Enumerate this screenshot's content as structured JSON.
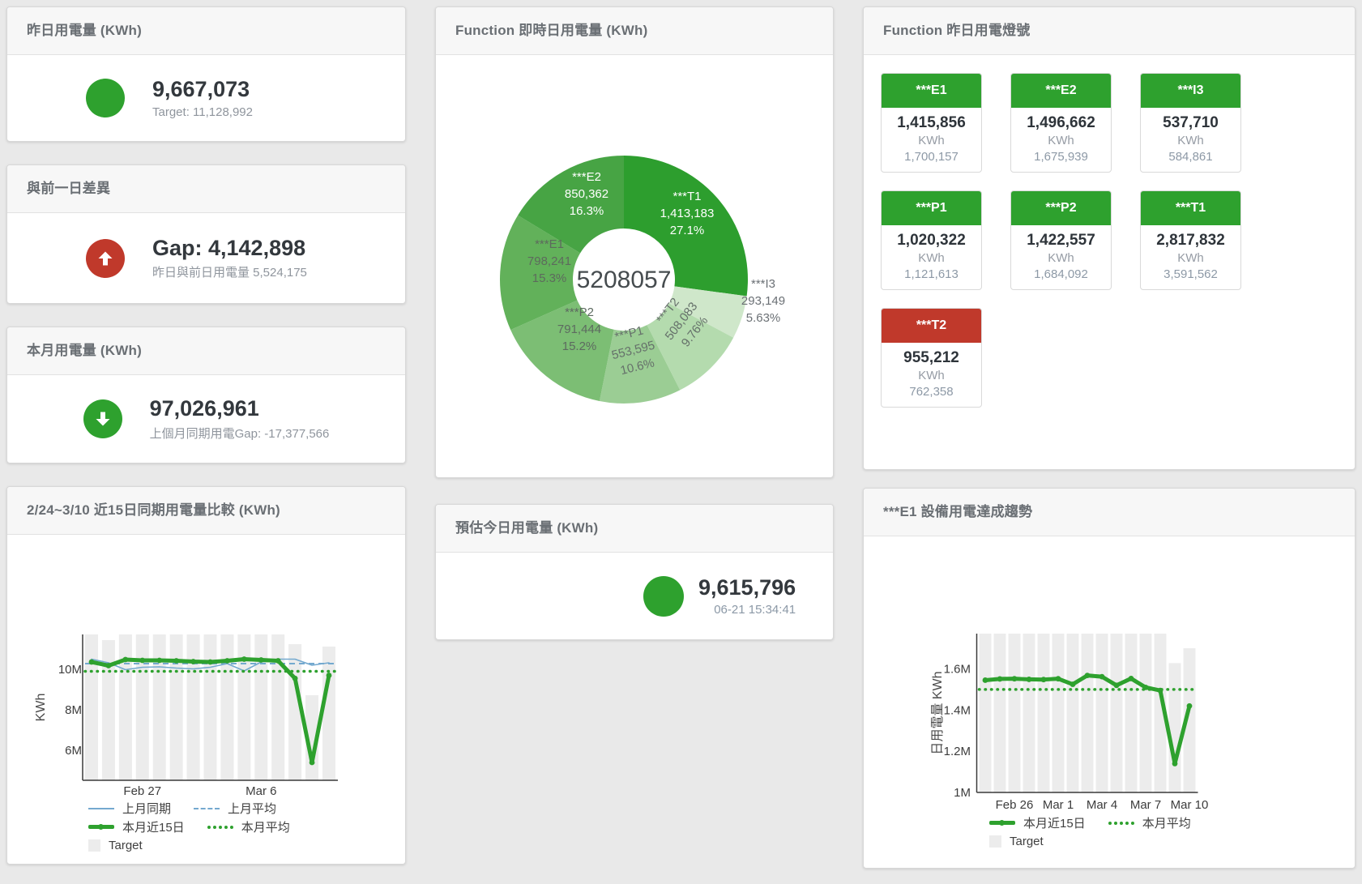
{
  "colors": {
    "green": "#2ea12e",
    "red": "#c0392b",
    "blue": "#74a9cf",
    "bar_gray": "#ececec",
    "title_gray": "#6a6f74",
    "value_dark": "#33383d",
    "sub_gray": "#8f959d"
  },
  "cards": {
    "yesterday": {
      "title": "昨日用電量 (KWh)",
      "value": "9,667,073",
      "subtitle": "Target: 11,128,992"
    },
    "diff": {
      "title": "與前一日差異",
      "value": "Gap: 4,142,898",
      "subtitle": "昨日與前日用電量 5,524,175"
    },
    "month": {
      "title": "本月用電量 (KWh)",
      "value": "97,026,961",
      "subtitle": "上個月同期用電Gap: -17,377,566"
    },
    "estimate": {
      "title": "預估今日用電量 (KWh)",
      "value": "9,615,796",
      "subtitle": "06-21 15:34:41"
    }
  },
  "lights": {
    "title": "Function 昨日用電燈號",
    "unit": "KWh",
    "tiles": [
      {
        "name": "***E1",
        "value": "1,415,856",
        "target": "1,700,157",
        "status": "green"
      },
      {
        "name": "***E2",
        "value": "1,496,662",
        "target": "1,675,939",
        "status": "green"
      },
      {
        "name": "***I3",
        "value": "537,710",
        "target": "584,861",
        "status": "green"
      },
      {
        "name": "***P1",
        "value": "1,020,322",
        "target": "1,121,613",
        "status": "green"
      },
      {
        "name": "***P2",
        "value": "1,422,557",
        "target": "1,684,092",
        "status": "green"
      },
      {
        "name": "***T1",
        "value": "2,817,832",
        "target": "3,591,562",
        "status": "green"
      },
      {
        "name": "***T2",
        "value": "955,212",
        "target": "762,358",
        "status": "red"
      }
    ]
  },
  "chart_data": [
    {
      "id": "donut",
      "type": "pie",
      "title": "Function 即時日用電量 (KWh)",
      "center_total": "5208057",
      "legend_position": "none",
      "slices": [
        {
          "label": "***T1",
          "value": 1413183,
          "display": "1,413,183",
          "pct": "27.1%",
          "color": "#2d9e2e",
          "text_color": "#ffffff",
          "label_pos": [
            310,
            193
          ]
        },
        {
          "label": "***I3",
          "value": 293149,
          "display": "293,149",
          "pct": "5.63%",
          "color": "#cfe7ca",
          "text_color": "#6b7075",
          "label_pos": [
            404,
            301
          ]
        },
        {
          "label": "***T2",
          "value": 508083,
          "display": "508,083",
          "pct": "9.76%",
          "color": "#b4dbae",
          "text_color": "#65706a",
          "label_pos": [
            301,
            327
          ],
          "label_rotate": -52
        },
        {
          "label": "***P1",
          "value": 553595,
          "display": "553,595",
          "pct": "10.6%",
          "color": "#9bcd94",
          "text_color": "#65706a",
          "label_pos": [
            243,
            362
          ],
          "label_rotate": -14
        },
        {
          "label": "***P2",
          "value": 791444,
          "display": "791,444",
          "pct": "15.2%",
          "color": "#7cbe74",
          "text_color": "#5d6a60",
          "label_pos": [
            177,
            336
          ]
        },
        {
          "label": "***E1",
          "value": 798241,
          "display": "798,241",
          "pct": "15.3%",
          "color": "#62b15a",
          "text_color": "#5d6a5d",
          "label_pos": [
            140,
            252
          ]
        },
        {
          "label": "***E2",
          "value": 850362,
          "display": "850,362",
          "pct": "16.3%",
          "color": "#47a444",
          "text_color": "#ffffff",
          "label_pos": [
            186,
            169
          ]
        }
      ]
    },
    {
      "id": "compare",
      "type": "line",
      "title": "2/24~3/10 近15日同期用電量比較 (KWh)",
      "xlabel": "",
      "ylabel": "KWh",
      "ylim": [
        4.52,
        11.72
      ],
      "grid": false,
      "yticks": [
        {
          "v": 6,
          "label": "6M"
        },
        {
          "v": 8,
          "label": "8M"
        },
        {
          "v": 10,
          "label": "10M"
        }
      ],
      "xticks": [
        {
          "i": 3,
          "label": "Feb 27"
        },
        {
          "i": 10,
          "label": "Mar 6"
        }
      ],
      "bars": {
        "name": "Target",
        "color": "#ececec",
        "values": [
          11.72,
          11.44,
          11.72,
          11.72,
          11.72,
          11.72,
          11.72,
          11.72,
          11.72,
          11.72,
          11.72,
          11.72,
          11.24,
          8.72,
          11.12
        ]
      },
      "series": [
        {
          "name": "上月同期",
          "style": "solid",
          "color": "#74a9cf",
          "width": 1.6,
          "values": [
            10.5,
            10.32,
            9.98,
            10.1,
            10.12,
            10.06,
            10.02,
            10.1,
            10.28,
            9.92,
            10.36,
            10.5,
            10.5,
            10.2,
            10.32
          ]
        },
        {
          "name": "上月平均",
          "style": "dashed",
          "color": "#74a9cf",
          "width": 2,
          "const": 10.28
        },
        {
          "name": "本月近15日",
          "style": "solid",
          "color": "#2ea12e",
          "width": 5,
          "markers": true,
          "values": [
            10.36,
            10.18,
            10.48,
            10.44,
            10.44,
            10.42,
            10.38,
            10.36,
            10.42,
            10.5,
            10.46,
            10.42,
            9.55,
            5.4,
            9.7
          ]
        },
        {
          "name": "本月平均",
          "style": "dotted",
          "color": "#2ea12e",
          "width": 3.5,
          "const": 9.9
        }
      ],
      "legend_position": "bottom",
      "legend": [
        [
          {
            "swatch": "line",
            "color": "#74a9cf",
            "label": "上月同期"
          },
          {
            "swatch": "dash",
            "color": "#74a9cf",
            "label": "上月平均"
          }
        ],
        [
          {
            "swatch": "thick",
            "color": "#2ea12e",
            "label": "本月近15日"
          },
          {
            "swatch": "dot",
            "color": "#2ea12e",
            "label": "本月平均"
          }
        ],
        [
          {
            "swatch": "square",
            "color": "#ececec",
            "label": "Target"
          }
        ]
      ]
    },
    {
      "id": "e1trend",
      "type": "line",
      "title": "***E1 設備用電達成趨勢",
      "xlabel": "",
      "ylabel": "日用電量 KWh",
      "ylim": [
        1.0,
        1.771
      ],
      "grid": false,
      "yticks": [
        {
          "v": 1,
          "label": "1M"
        },
        {
          "v": 1.2,
          "label": "1.2M"
        },
        {
          "v": 1.4,
          "label": "1.4M"
        },
        {
          "v": 1.6,
          "label": "1.6M"
        }
      ],
      "xticks": [
        {
          "i": 2,
          "label": "Feb 26"
        },
        {
          "i": 5,
          "label": "Mar 1"
        },
        {
          "i": 8,
          "label": "Mar 4"
        },
        {
          "i": 11,
          "label": "Mar 7"
        },
        {
          "i": 14,
          "label": "Mar 10"
        }
      ],
      "bars": {
        "name": "Target",
        "color": "#ececec",
        "values": [
          1.771,
          1.771,
          1.771,
          1.771,
          1.771,
          1.771,
          1.771,
          1.771,
          1.771,
          1.771,
          1.771,
          1.771,
          1.771,
          1.628,
          1.7
        ]
      },
      "series": [
        {
          "name": "本月近15日",
          "style": "solid",
          "color": "#2ea12e",
          "width": 5,
          "markers": true,
          "values": [
            1.545,
            1.551,
            1.552,
            1.549,
            1.548,
            1.552,
            1.525,
            1.568,
            1.562,
            1.52,
            1.553,
            1.51,
            1.495,
            1.14,
            1.42
          ]
        },
        {
          "name": "本月平均",
          "style": "dotted",
          "color": "#2ea12e",
          "width": 3.5,
          "const": 1.5
        }
      ],
      "legend_position": "bottom",
      "legend": [
        [
          {
            "swatch": "thick",
            "color": "#2ea12e",
            "label": "本月近15日"
          },
          {
            "swatch": "dot",
            "color": "#2ea12e",
            "label": "本月平均"
          }
        ],
        [
          {
            "swatch": "square",
            "color": "#ececec",
            "label": "Target"
          }
        ]
      ]
    }
  ]
}
